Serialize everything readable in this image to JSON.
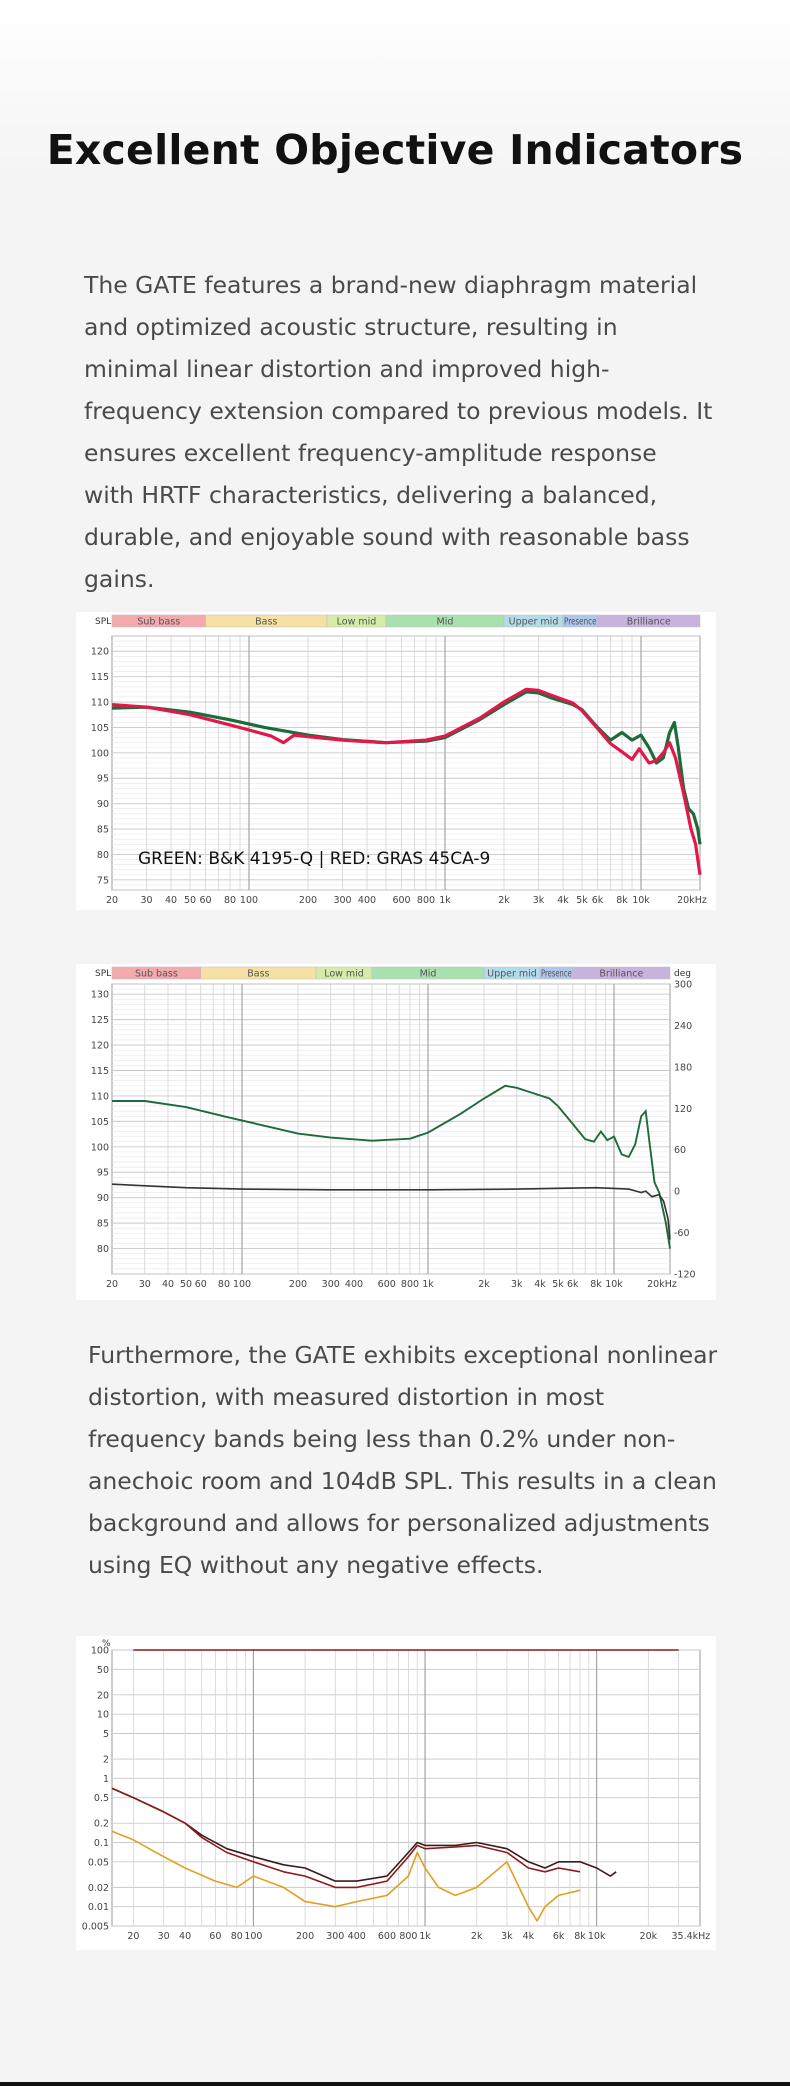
{
  "heading": "Excellent Objective Indicators",
  "intro_text": "The GATE features a brand-new diaphragm material and optimized acoustic structure, resulting in minimal linear distortion and improved high-frequency extension compared to previous models. It ensures excellent frequency-amplitude response with HRTF characteristics, delivering a balanced, durable, and enjoyable sound with reasonable bass gains.",
  "distortion_text": "Furthermore, the GATE exhibits exceptional nonlinear distortion, with measured distortion in most frequency bands being less than 0.2% under non-anechoic room and 104dB SPL. This results in a clean background and allows for personalized adjustments using EQ without any negative effects.",
  "colors": {
    "green_trace": "#1d6b3a",
    "red_trace": "#e0194a",
    "phase_trace": "#333333",
    "thd_dark": "#3a1a1a",
    "thd_red": "#8b1a1a",
    "thd_orange": "#e0a020",
    "band_sub_bass": "#f4a9ad",
    "band_bass": "#f6e0a4",
    "band_low_mid": "#d5eba8",
    "band_mid": "#a9e0b0",
    "band_upper_mid": "#b2dcea",
    "band_presence": "#aec6ea",
    "band_brilliance": "#c7b3dc"
  },
  "chart_data": [
    {
      "type": "line",
      "y_unit": "SPL",
      "x_scale": "log",
      "xlim": [
        20,
        20000
      ],
      "ylim": [
        73,
        123
      ],
      "y_ticks": [
        75,
        80,
        85,
        90,
        95,
        100,
        105,
        110,
        115,
        120
      ],
      "x_ticks": [
        "20",
        "30",
        "40",
        "50",
        "60",
        "80",
        "100",
        "200",
        "300",
        "400",
        "600",
        "800",
        "1k",
        "2k",
        "3k",
        "4k",
        "5k",
        "6k",
        "8k",
        "10k",
        "20kHz"
      ],
      "bands": [
        "Sub bass",
        "Bass",
        "Low mid",
        "Mid",
        "Upper mid",
        "Presence",
        "Brilliance"
      ],
      "annotation": "GREEN: B&K 4195-Q | RED: GRAS 45CA-9",
      "grid": true,
      "series": [
        {
          "color_key": "green_trace",
          "points": [
            [
              20,
              108.8
            ],
            [
              30,
              109
            ],
            [
              50,
              108
            ],
            [
              80,
              106.5
            ],
            [
              120,
              105
            ],
            [
              200,
              103.5
            ],
            [
              300,
              102.6
            ],
            [
              500,
              102
            ],
            [
              800,
              102.3
            ],
            [
              1000,
              103
            ],
            [
              1500,
              106.5
            ],
            [
              2000,
              109.5
            ],
            [
              2600,
              112
            ],
            [
              3000,
              111.8
            ],
            [
              3500,
              110.8
            ],
            [
              4500,
              109.5
            ],
            [
              5000,
              108.5
            ],
            [
              6000,
              105
            ],
            [
              7000,
              102.5
            ],
            [
              8000,
              104
            ],
            [
              9000,
              102.5
            ],
            [
              10000,
              103.5
            ],
            [
              11000,
              101
            ],
            [
              12000,
              98
            ],
            [
              13000,
              99
            ],
            [
              14000,
              104
            ],
            [
              14800,
              106
            ],
            [
              15500,
              101
            ],
            [
              16500,
              93
            ],
            [
              17500,
              89
            ],
            [
              18500,
              88
            ],
            [
              19500,
              85
            ],
            [
              20000,
              82
            ]
          ]
        },
        {
          "color_key": "red_trace",
          "points": [
            [
              20,
              109.5
            ],
            [
              30,
              109
            ],
            [
              50,
              107.5
            ],
            [
              80,
              105.5
            ],
            [
              100,
              104.5
            ],
            [
              130,
              103.3
            ],
            [
              150,
              102
            ],
            [
              170,
              103.5
            ],
            [
              200,
              103.2
            ],
            [
              300,
              102.5
            ],
            [
              500,
              102
            ],
            [
              800,
              102.5
            ],
            [
              1000,
              103.3
            ],
            [
              1500,
              106.8
            ],
            [
              2000,
              110
            ],
            [
              2600,
              112.5
            ],
            [
              3000,
              112.3
            ],
            [
              3500,
              111.3
            ],
            [
              4500,
              109.8
            ],
            [
              5000,
              108.3
            ],
            [
              6000,
              104.8
            ],
            [
              7000,
              101.8
            ],
            [
              8000,
              100.2
            ],
            [
              9000,
              98.7
            ],
            [
              9800,
              100.8
            ],
            [
              11000,
              98
            ],
            [
              12000,
              98.5
            ],
            [
              13000,
              100
            ],
            [
              14000,
              102
            ],
            [
              15000,
              99
            ],
            [
              16500,
              92
            ],
            [
              18000,
              85
            ],
            [
              19000,
              82
            ],
            [
              20000,
              76
            ]
          ]
        }
      ]
    },
    {
      "type": "line",
      "y_unit": "SPL",
      "y2_unit": "deg",
      "x_scale": "log",
      "xlim": [
        20,
        20000
      ],
      "ylim": [
        75,
        132
      ],
      "y_ticks": [
        80,
        85,
        90,
        95,
        100,
        105,
        110,
        115,
        120,
        125,
        130
      ],
      "y2lim": [
        -120,
        300
      ],
      "y2_ticks": [
        -120,
        -60,
        0,
        60,
        120,
        180,
        240,
        300
      ],
      "x_ticks": [
        "20",
        "30",
        "40",
        "50",
        "60",
        "80",
        "100",
        "200",
        "300",
        "400",
        "600",
        "800",
        "1k",
        "2k",
        "3k",
        "4k",
        "5k",
        "6k",
        "8k",
        "10k",
        "20kHz"
      ],
      "bands": [
        "Sub bass",
        "Bass",
        "Low mid",
        "Mid",
        "Upper mid",
        "Presence",
        "Brilliance"
      ],
      "grid": true,
      "series": [
        {
          "color_key": "green_trace",
          "axis": "spl",
          "points": [
            [
              20,
              109
            ],
            [
              30,
              109
            ],
            [
              50,
              107.8
            ],
            [
              80,
              106
            ],
            [
              120,
              104.5
            ],
            [
              200,
              102.6
            ],
            [
              300,
              101.8
            ],
            [
              500,
              101.2
            ],
            [
              800,
              101.6
            ],
            [
              1000,
              102.8
            ],
            [
              1500,
              106.5
            ],
            [
              2000,
              109.5
            ],
            [
              2600,
              112
            ],
            [
              3000,
              111.6
            ],
            [
              3500,
              110.8
            ],
            [
              4500,
              109.5
            ],
            [
              5000,
              108
            ],
            [
              6000,
              104.5
            ],
            [
              7000,
              101.5
            ],
            [
              7800,
              101
            ],
            [
              8500,
              103
            ],
            [
              9200,
              101.3
            ],
            [
              10000,
              102
            ],
            [
              11000,
              98.5
            ],
            [
              12000,
              98
            ],
            [
              13000,
              100.5
            ],
            [
              14000,
              106
            ],
            [
              14800,
              107
            ],
            [
              15500,
              101
            ],
            [
              16500,
              93
            ],
            [
              17500,
              91
            ],
            [
              19000,
              85
            ],
            [
              20000,
              80
            ]
          ]
        },
        {
          "color_key": "phase_trace",
          "axis": "deg",
          "points": [
            [
              20,
              10
            ],
            [
              50,
              5
            ],
            [
              100,
              3
            ],
            [
              300,
              2
            ],
            [
              1000,
              2
            ],
            [
              3000,
              3
            ],
            [
              8000,
              5
            ],
            [
              12000,
              3
            ],
            [
              14000,
              -2
            ],
            [
              14800,
              0
            ],
            [
              16000,
              -8
            ],
            [
              17500,
              -5
            ],
            [
              18500,
              -15
            ],
            [
              19500,
              -40
            ],
            [
              20000,
              -70
            ]
          ]
        }
      ]
    },
    {
      "type": "line",
      "y_unit": "%",
      "x_scale": "log",
      "y_scale": "log",
      "xlim": [
        15,
        40000
      ],
      "ylim": [
        0.005,
        100
      ],
      "y_ticks": [
        "0.005",
        "0.01",
        "0.02",
        "0.05",
        "0.1",
        "0.2",
        "0.5",
        "1",
        "2",
        "5",
        "10",
        "20",
        "50",
        "100"
      ],
      "x_ticks": [
        "20",
        "30",
        "40",
        "60",
        "80",
        "100",
        "200",
        "300",
        "400",
        "600",
        "800",
        "1k",
        "2k",
        "3k",
        "4k",
        "6k",
        "8k",
        "10k",
        "20k",
        "35.4kHz"
      ],
      "grid": true,
      "series": [
        {
          "color_key": "thd_red",
          "points": [
            [
              20,
              100
            ],
            [
              30000,
              100
            ]
          ]
        },
        {
          "color_key": "thd_dark",
          "points": [
            [
              15,
              0.7
            ],
            [
              20,
              0.5
            ],
            [
              30,
              0.3
            ],
            [
              40,
              0.2
            ],
            [
              50,
              0.13
            ],
            [
              70,
              0.08
            ],
            [
              100,
              0.06
            ],
            [
              150,
              0.045
            ],
            [
              200,
              0.04
            ],
            [
              300,
              0.025
            ],
            [
              400,
              0.025
            ],
            [
              600,
              0.03
            ],
            [
              800,
              0.07
            ],
            [
              900,
              0.1
            ],
            [
              1000,
              0.09
            ],
            [
              1500,
              0.09
            ],
            [
              2000,
              0.1
            ],
            [
              3000,
              0.08
            ],
            [
              4000,
              0.05
            ],
            [
              5000,
              0.04
            ],
            [
              6000,
              0.05
            ],
            [
              8000,
              0.05
            ],
            [
              10000,
              0.04
            ],
            [
              12000,
              0.03
            ],
            [
              13000,
              0.035
            ]
          ]
        },
        {
          "color_key": "thd_red",
          "points": [
            [
              15,
              0.7
            ],
            [
              20,
              0.5
            ],
            [
              30,
              0.3
            ],
            [
              40,
              0.2
            ],
            [
              50,
              0.12
            ],
            [
              70,
              0.07
            ],
            [
              100,
              0.05
            ],
            [
              150,
              0.035
            ],
            [
              200,
              0.03
            ],
            [
              300,
              0.02
            ],
            [
              400,
              0.02
            ],
            [
              600,
              0.025
            ],
            [
              800,
              0.06
            ],
            [
              900,
              0.09
            ],
            [
              1000,
              0.08
            ],
            [
              1500,
              0.085
            ],
            [
              2000,
              0.09
            ],
            [
              3000,
              0.07
            ],
            [
              4000,
              0.04
            ],
            [
              5000,
              0.035
            ],
            [
              6000,
              0.04
            ],
            [
              8000,
              0.035
            ]
          ]
        },
        {
          "color_key": "thd_orange",
          "points": [
            [
              15,
              0.15
            ],
            [
              20,
              0.11
            ],
            [
              30,
              0.06
            ],
            [
              40,
              0.04
            ],
            [
              60,
              0.025
            ],
            [
              80,
              0.02
            ],
            [
              100,
              0.03
            ],
            [
              150,
              0.02
            ],
            [
              200,
              0.012
            ],
            [
              300,
              0.01
            ],
            [
              400,
              0.012
            ],
            [
              600,
              0.015
            ],
            [
              800,
              0.03
            ],
            [
              900,
              0.07
            ],
            [
              1000,
              0.04
            ],
            [
              1200,
              0.02
            ],
            [
              1500,
              0.015
            ],
            [
              2000,
              0.02
            ],
            [
              3000,
              0.05
            ],
            [
              4000,
              0.01
            ],
            [
              4500,
              0.006
            ],
            [
              5000,
              0.01
            ],
            [
              6000,
              0.015
            ],
            [
              8000,
              0.018
            ]
          ]
        }
      ]
    }
  ]
}
